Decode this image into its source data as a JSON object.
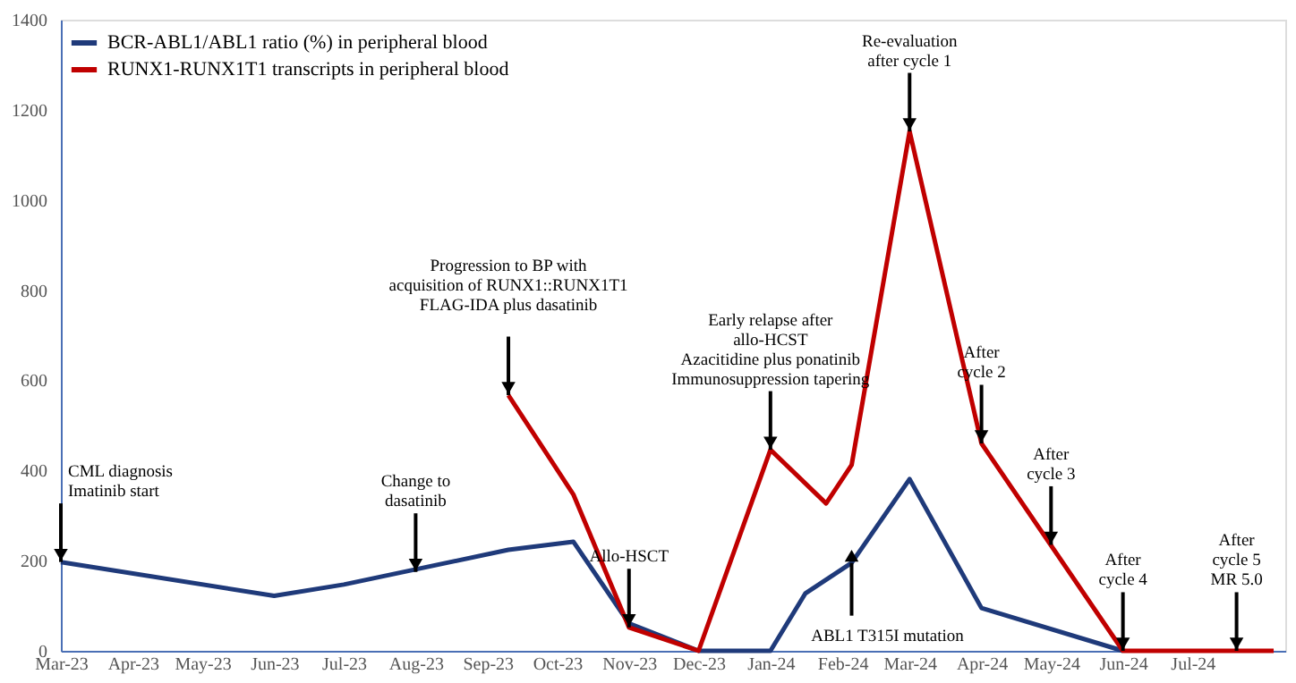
{
  "chart_data": {
    "type": "line",
    "xlim": [
      "2023-03-01",
      "2024-08-10"
    ],
    "xticks": [
      {
        "value": "2023-03-01",
        "label": "Mar-23"
      },
      {
        "value": "2023-04-01",
        "label": "Apr-23"
      },
      {
        "value": "2023-05-01",
        "label": "May-23"
      },
      {
        "value": "2023-06-01",
        "label": "Jun-23"
      },
      {
        "value": "2023-07-01",
        "label": "Jul-23"
      },
      {
        "value": "2023-08-01",
        "label": "Aug-23"
      },
      {
        "value": "2023-09-01",
        "label": "Sep-23"
      },
      {
        "value": "2023-10-01",
        "label": "Oct-23"
      },
      {
        "value": "2023-11-01",
        "label": "Nov-23"
      },
      {
        "value": "2023-12-01",
        "label": "Dec-23"
      },
      {
        "value": "2024-01-01",
        "label": "Jan-24"
      },
      {
        "value": "2024-02-01",
        "label": "Feb-24"
      },
      {
        "value": "2024-03-01",
        "label": "Mar-24"
      },
      {
        "value": "2024-04-01",
        "label": "Apr-24"
      },
      {
        "value": "2024-05-01",
        "label": "May-24"
      },
      {
        "value": "2024-06-01",
        "label": "Jun-24"
      },
      {
        "value": "2024-07-01",
        "label": "Jul-24"
      }
    ],
    "ylim": [
      0,
      1400
    ],
    "yticks": [
      0,
      200,
      400,
      600,
      800,
      1000,
      1200,
      1400
    ],
    "grid": false,
    "legend": "top left",
    "marker": "none",
    "line_style": "solid",
    "series": [
      {
        "name": "BCR-ABL1/ABL1 ratio (%) in peripheral blood",
        "color": "#1f3a7a",
        "x": [
          "2023-03-01",
          "2023-06-01",
          "2023-07-01",
          "2023-09-10",
          "2023-10-08",
          "2023-11-01",
          "2023-12-01",
          "2024-01-01",
          "2024-01-16",
          "2024-02-05",
          "2024-03-01",
          "2024-04-01",
          "2024-06-01"
        ],
        "values": [
          197,
          122,
          147,
          224,
          242,
          61,
          0,
          0,
          127,
          195,
          381,
          95,
          0
        ]
      },
      {
        "name": "RUNX1-RUNX1T1 transcripts in peripheral blood",
        "color": "#c00000",
        "x": [
          "2023-09-10",
          "2023-10-08",
          "2023-11-01",
          "2023-12-01",
          "2024-01-01",
          "2024-01-25",
          "2024-02-05",
          "2024-03-01",
          "2024-04-01",
          "2024-06-01",
          "2024-08-05"
        ],
        "values": [
          567,
          347,
          52,
          0,
          446,
          327,
          412,
          1152,
          460,
          0,
          0
        ]
      }
    ],
    "annotations": [
      {
        "text": "CML diagnosis\nImatinib start",
        "x": "2023-03-01",
        "y": 197
      },
      {
        "text": "Change to\ndasatinib",
        "x": "2023-08-01",
        "y": 175
      },
      {
        "text": "Progression to BP with\nacquisition of RUNX1::RUNX1T1\n\nFLAG-IDA plus dasatinib",
        "x": "2023-09-10",
        "y": 567
      },
      {
        "text": "Allo-HSCT",
        "x": "2023-11-01",
        "y": 52
      },
      {
        "text": "Early relapse after\nallo-HCST\nAzacitidine plus ponatinib\nImmunosuppression tapering",
        "x": "2024-01-01",
        "y": 446
      },
      {
        "text": "Re-evaluation\nafter cycle 1",
        "x": "2024-03-01",
        "y": 1152
      },
      {
        "text": "After\ncycle 2",
        "x": "2024-04-01",
        "y": 460
      },
      {
        "text": "After\ncycle 3",
        "x": "2024-05-01",
        "y": 235
      },
      {
        "text": "After\ncycle 4",
        "x": "2024-06-01",
        "y": 0
      },
      {
        "text": "After\ncycle 5\nMR 5.0",
        "x": "2024-07-20",
        "y": 0
      },
      {
        "text": "ABL1 T315I mutation",
        "x": "2024-02-05",
        "y": 195
      }
    ]
  }
}
